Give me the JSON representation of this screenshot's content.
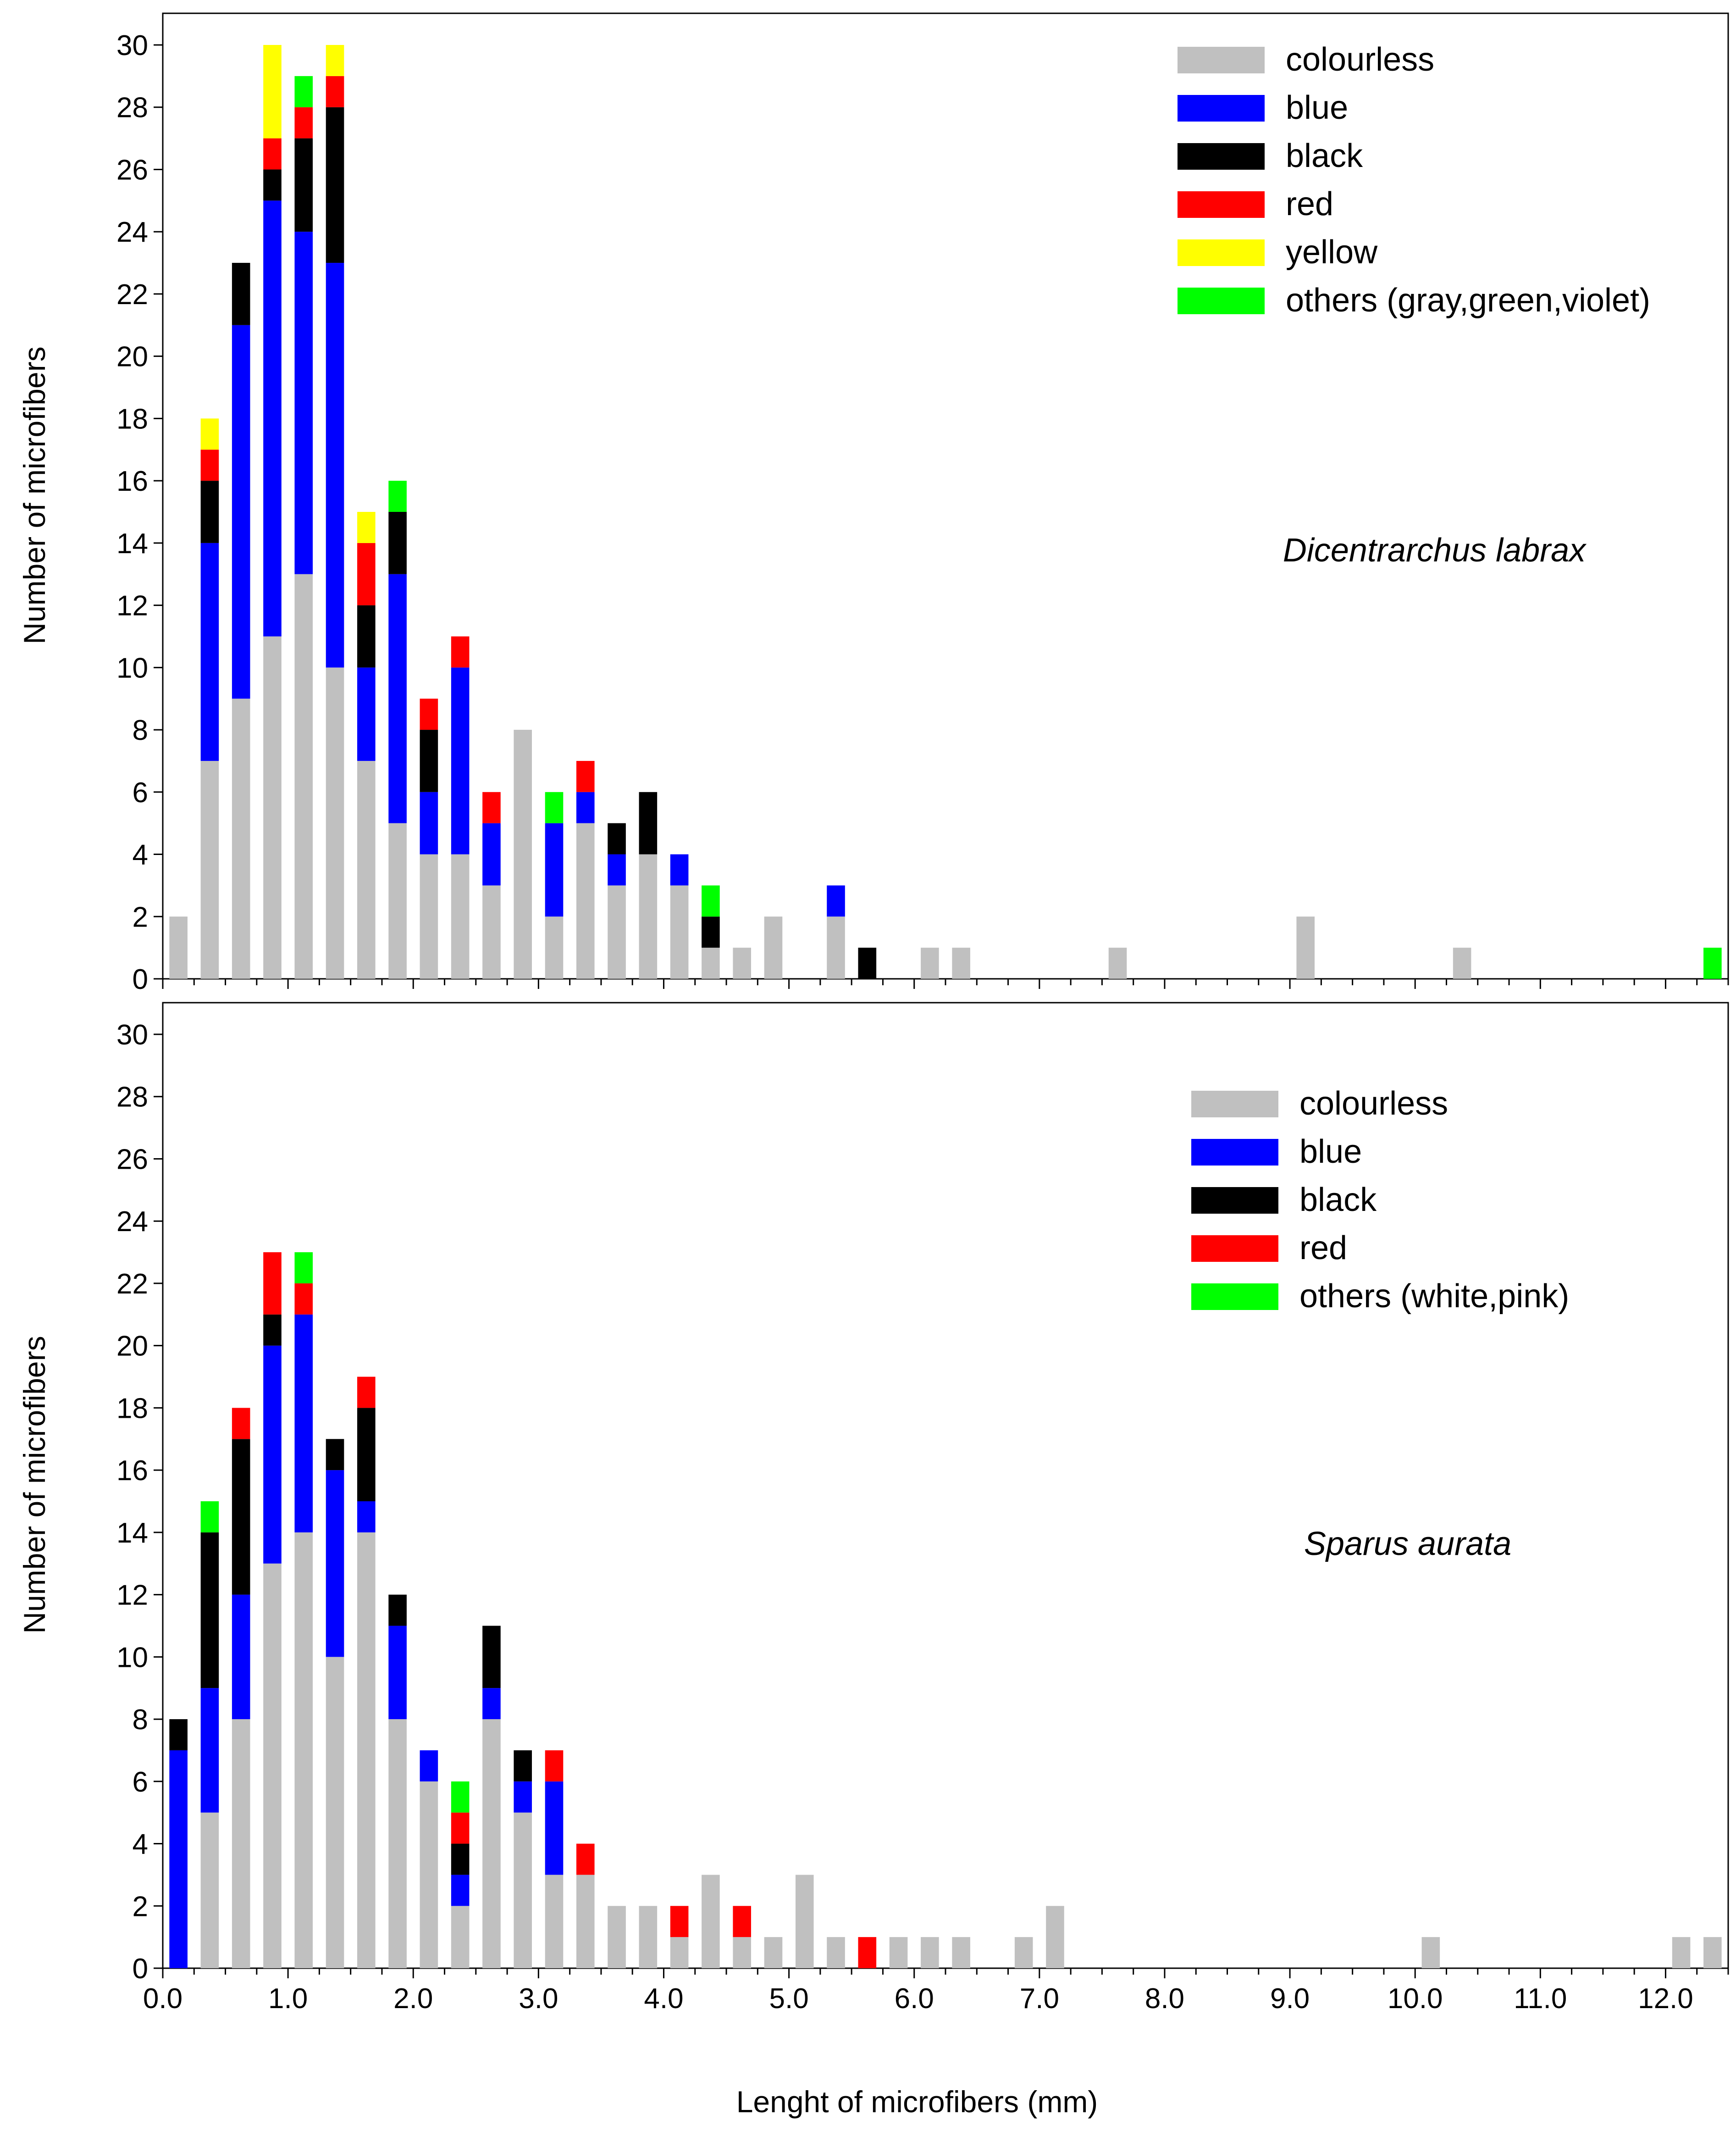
{
  "colors": {
    "colourless": "#c0c0c0",
    "blue": "#0000ff",
    "black": "#000000",
    "red": "#ff0000",
    "yellow": "#ffff00",
    "others": "#00ff00"
  },
  "x_axis": {
    "label": "Lenght of microfibers (mm)",
    "ticks": [
      "0.0",
      "1.0",
      "2.0",
      "3.0",
      "4.0",
      "5.0",
      "6.0",
      "7.0",
      "8.0",
      "9.0",
      "10.0",
      "11.0",
      "12.0"
    ],
    "bin_width_mm": 0.25,
    "range_mm": [
      0,
      12.5
    ]
  },
  "chart_data": [
    {
      "type": "bar",
      "stacked": true,
      "annotation": "Dicentrarchus labrax",
      "ylabel": "Number of microfibers",
      "ylim": [
        0,
        30
      ],
      "yticks": [
        0,
        2,
        4,
        6,
        8,
        10,
        12,
        14,
        16,
        18,
        20,
        22,
        24,
        26,
        28,
        30
      ],
      "legend_position": "top-right",
      "x_bin_centers": [
        0.125,
        0.375,
        0.625,
        0.875,
        1.125,
        1.375,
        1.625,
        1.875,
        2.125,
        2.375,
        2.625,
        2.875,
        3.125,
        3.375,
        3.625,
        3.875,
        4.125,
        4.375,
        4.625,
        4.875,
        5.125,
        5.375,
        5.625,
        5.875,
        6.125,
        6.375,
        6.625,
        6.875,
        7.125,
        7.375,
        7.625,
        7.875,
        8.125,
        8.375,
        8.625,
        8.875,
        9.125,
        9.375,
        9.625,
        9.875,
        10.125,
        10.375,
        10.625,
        10.875,
        11.125,
        11.375,
        11.625,
        11.875,
        12.125,
        12.375
      ],
      "series": [
        {
          "name": "colourless",
          "color_key": "colourless",
          "values": [
            2,
            7,
            9,
            11,
            13,
            10,
            7,
            5,
            4,
            4,
            3,
            8,
            2,
            5,
            3,
            4,
            3,
            1,
            1,
            2,
            0,
            2,
            0,
            0,
            1,
            1,
            0,
            0,
            0,
            0,
            1,
            0,
            0,
            0,
            0,
            0,
            2,
            0,
            0,
            0,
            0,
            1,
            0,
            0,
            0,
            0,
            0,
            0,
            0,
            0
          ]
        },
        {
          "name": "blue",
          "color_key": "blue",
          "values": [
            0,
            7,
            12,
            14,
            11,
            13,
            3,
            8,
            2,
            6,
            2,
            0,
            3,
            1,
            1,
            0,
            1,
            0,
            0,
            0,
            0,
            1,
            0,
            0,
            0,
            0,
            0,
            0,
            0,
            0,
            0,
            0,
            0,
            0,
            0,
            0,
            0,
            0,
            0,
            0,
            0,
            0,
            0,
            0,
            0,
            0,
            0,
            0,
            0,
            0
          ]
        },
        {
          "name": "black",
          "color_key": "black",
          "values": [
            0,
            2,
            2,
            1,
            3,
            5,
            2,
            2,
            2,
            0,
            0,
            0,
            0,
            0,
            1,
            2,
            0,
            1,
            0,
            0,
            0,
            0,
            1,
            0,
            0,
            0,
            0,
            0,
            0,
            0,
            0,
            0,
            0,
            0,
            0,
            0,
            0,
            0,
            0,
            0,
            0,
            0,
            0,
            0,
            0,
            0,
            0,
            0,
            0,
            0
          ]
        },
        {
          "name": "red",
          "color_key": "red",
          "values": [
            0,
            1,
            0,
            1,
            1,
            1,
            2,
            0,
            1,
            1,
            1,
            0,
            0,
            1,
            0,
            0,
            0,
            0,
            0,
            0,
            0,
            0,
            0,
            0,
            0,
            0,
            0,
            0,
            0,
            0,
            0,
            0,
            0,
            0,
            0,
            0,
            0,
            0,
            0,
            0,
            0,
            0,
            0,
            0,
            0,
            0,
            0,
            0,
            0,
            0
          ]
        },
        {
          "name": "yellow",
          "color_key": "yellow",
          "values": [
            0,
            1,
            0,
            3,
            0,
            1,
            1,
            0,
            0,
            0,
            0,
            0,
            0,
            0,
            0,
            0,
            0,
            0,
            0,
            0,
            0,
            0,
            0,
            0,
            0,
            0,
            0,
            0,
            0,
            0,
            0,
            0,
            0,
            0,
            0,
            0,
            0,
            0,
            0,
            0,
            0,
            0,
            0,
            0,
            0,
            0,
            0,
            0,
            0,
            0
          ]
        },
        {
          "name": "others (gray,green,violet)",
          "color_key": "others",
          "values": [
            0,
            0,
            0,
            0,
            1,
            0,
            0,
            1,
            0,
            0,
            0,
            0,
            1,
            0,
            0,
            0,
            0,
            1,
            0,
            0,
            0,
            0,
            0,
            0,
            0,
            0,
            0,
            0,
            0,
            0,
            0,
            0,
            0,
            0,
            0,
            0,
            0,
            0,
            0,
            0,
            0,
            0,
            0,
            0,
            0,
            0,
            0,
            0,
            0,
            1
          ]
        }
      ]
    },
    {
      "type": "bar",
      "stacked": true,
      "annotation": "Sparus aurata",
      "ylabel": "Number of microfibers",
      "ylim": [
        0,
        30
      ],
      "yticks": [
        0,
        2,
        4,
        6,
        8,
        10,
        12,
        14,
        16,
        18,
        20,
        22,
        24,
        26,
        28,
        30
      ],
      "legend_position": "top-right",
      "x_bin_centers": [
        0.125,
        0.375,
        0.625,
        0.875,
        1.125,
        1.375,
        1.625,
        1.875,
        2.125,
        2.375,
        2.625,
        2.875,
        3.125,
        3.375,
        3.625,
        3.875,
        4.125,
        4.375,
        4.625,
        4.875,
        5.125,
        5.375,
        5.625,
        5.875,
        6.125,
        6.375,
        6.625,
        6.875,
        7.125,
        7.375,
        7.625,
        7.875,
        8.125,
        8.375,
        8.625,
        8.875,
        9.125,
        9.375,
        9.625,
        9.875,
        10.125,
        10.375,
        10.625,
        10.875,
        11.125,
        11.375,
        11.625,
        11.875,
        12.125,
        12.375
      ],
      "series": [
        {
          "name": "colourless",
          "color_key": "colourless",
          "values": [
            0,
            5,
            8,
            13,
            14,
            10,
            14,
            8,
            6,
            2,
            8,
            5,
            3,
            3,
            2,
            2,
            1,
            3,
            1,
            1,
            3,
            1,
            0,
            1,
            1,
            1,
            0,
            1,
            2,
            0,
            0,
            0,
            0,
            0,
            0,
            0,
            0,
            0,
            0,
            0,
            1,
            0,
            0,
            0,
            0,
            0,
            0,
            0,
            1,
            1
          ]
        },
        {
          "name": "blue",
          "color_key": "blue",
          "values": [
            7,
            4,
            4,
            7,
            7,
            6,
            1,
            3,
            1,
            1,
            1,
            1,
            3,
            0,
            0,
            0,
            0,
            0,
            0,
            0,
            0,
            0,
            0,
            0,
            0,
            0,
            0,
            0,
            0,
            0,
            0,
            0,
            0,
            0,
            0,
            0,
            0,
            0,
            0,
            0,
            0,
            0,
            0,
            0,
            0,
            0,
            0,
            0,
            0,
            0
          ]
        },
        {
          "name": "black",
          "color_key": "black",
          "values": [
            1,
            5,
            5,
            1,
            0,
            1,
            3,
            1,
            0,
            1,
            2,
            1,
            0,
            0,
            0,
            0,
            0,
            0,
            0,
            0,
            0,
            0,
            0,
            0,
            0,
            0,
            0,
            0,
            0,
            0,
            0,
            0,
            0,
            0,
            0,
            0,
            0,
            0,
            0,
            0,
            0,
            0,
            0,
            0,
            0,
            0,
            0,
            0,
            0,
            0
          ]
        },
        {
          "name": "red",
          "color_key": "red",
          "values": [
            0,
            0,
            1,
            2,
            1,
            0,
            1,
            0,
            0,
            1,
            0,
            0,
            1,
            1,
            0,
            0,
            1,
            0,
            1,
            0,
            0,
            0,
            1,
            0,
            0,
            0,
            0,
            0,
            0,
            0,
            0,
            0,
            0,
            0,
            0,
            0,
            0,
            0,
            0,
            0,
            0,
            0,
            0,
            0,
            0,
            0,
            0,
            0,
            0,
            0
          ]
        },
        {
          "name": "others (white,pink)",
          "color_key": "others",
          "values": [
            0,
            1,
            0,
            0,
            1,
            0,
            0,
            0,
            0,
            1,
            0,
            0,
            0,
            0,
            0,
            0,
            0,
            0,
            0,
            0,
            0,
            0,
            0,
            0,
            0,
            0,
            0,
            0,
            0,
            0,
            0,
            0,
            0,
            0,
            0,
            0,
            0,
            0,
            0,
            0,
            0,
            0,
            0,
            0,
            0,
            0,
            0,
            0,
            0,
            0
          ]
        }
      ]
    }
  ]
}
